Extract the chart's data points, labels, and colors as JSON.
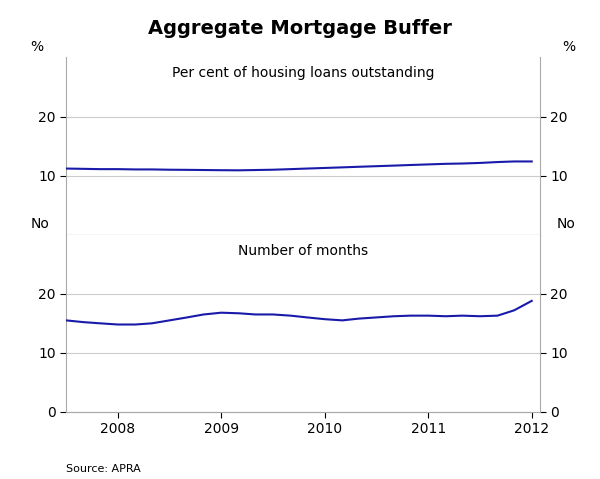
{
  "title": "Aggregate Mortgage Buffer",
  "source": "Source: APRA",
  "top_panel": {
    "label": "Per cent of housing loans outstanding",
    "ylabel_left": "%",
    "ylabel_right": "%",
    "ylim": [
      0,
      30
    ],
    "yticks": [
      10,
      20
    ],
    "x": [
      2007.5,
      2007.67,
      2007.83,
      2008.0,
      2008.17,
      2008.33,
      2008.5,
      2008.67,
      2008.83,
      2009.0,
      2009.17,
      2009.33,
      2009.5,
      2009.67,
      2009.83,
      2010.0,
      2010.17,
      2010.33,
      2010.5,
      2010.67,
      2010.83,
      2011.0,
      2011.17,
      2011.33,
      2011.5,
      2011.67,
      2011.83,
      2012.0
    ],
    "y": [
      11.2,
      11.15,
      11.1,
      11.1,
      11.05,
      11.05,
      11.0,
      10.98,
      10.95,
      10.92,
      10.9,
      10.95,
      11.0,
      11.1,
      11.2,
      11.3,
      11.4,
      11.5,
      11.6,
      11.7,
      11.8,
      11.9,
      12.0,
      12.05,
      12.15,
      12.3,
      12.4,
      12.4
    ]
  },
  "bottom_panel": {
    "label": "Number of months",
    "ylabel_left": "No",
    "ylabel_right": "No",
    "ylim": [
      0,
      30
    ],
    "yticks": [
      0,
      10,
      20
    ],
    "x": [
      2007.5,
      2007.67,
      2007.83,
      2008.0,
      2008.17,
      2008.33,
      2008.5,
      2008.67,
      2008.83,
      2009.0,
      2009.17,
      2009.33,
      2009.5,
      2009.67,
      2009.83,
      2010.0,
      2010.17,
      2010.33,
      2010.5,
      2010.67,
      2010.83,
      2011.0,
      2011.17,
      2011.33,
      2011.5,
      2011.67,
      2011.83,
      2012.0
    ],
    "y": [
      15.5,
      15.2,
      15.0,
      14.8,
      14.8,
      15.0,
      15.5,
      16.0,
      16.5,
      16.8,
      16.7,
      16.5,
      16.5,
      16.3,
      16.0,
      15.7,
      15.5,
      15.8,
      16.0,
      16.2,
      16.3,
      16.3,
      16.2,
      16.3,
      16.2,
      16.3,
      17.2,
      18.8
    ]
  },
  "xlim": [
    2007.5,
    2012.08
  ],
  "xticks": [
    2008,
    2009,
    2010,
    2011,
    2012
  ],
  "xticklabels": [
    "2008",
    "2009",
    "2010",
    "2011",
    "2012"
  ],
  "line_color": "#1a1aaa",
  "line_width": 1.5,
  "grid_color": "#cccccc",
  "bg_color": "#ffffff",
  "spine_color": "#aaaaaa"
}
